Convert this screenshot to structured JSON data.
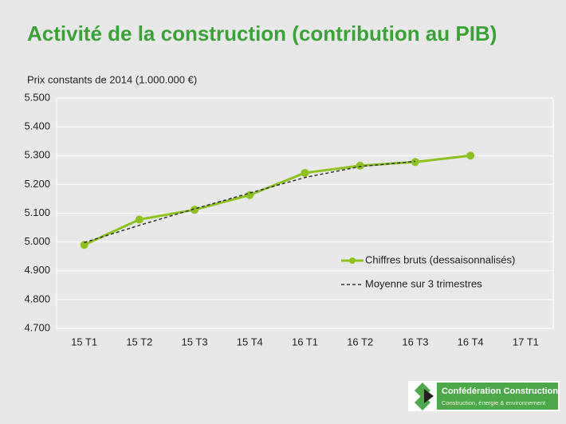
{
  "chart_data": {
    "type": "line",
    "title": "Activité de la construction (contribution au PIB)",
    "y_label": "Prix constants de 2014 (1.000.000 €)",
    "categories": [
      "15 T1",
      "15 T2",
      "15 T3",
      "15 T4",
      "16 T1",
      "16 T2",
      "16 T3",
      "16 T4",
      "17 T1"
    ],
    "series": [
      {
        "name": "Chiffres bruts (dessaisonnalisés)",
        "color": "#8dc21f",
        "style": "solid",
        "markers": true,
        "values": [
          4990,
          5078,
          5112,
          5163,
          5240,
          5265,
          5278,
          5300,
          null
        ]
      },
      {
        "name": "Moyenne sur 3 trimestres",
        "color": "#333333",
        "style": "dashed",
        "markers": false,
        "values": [
          4998,
          5058,
          5115,
          5170,
          5224,
          5262,
          5280,
          null,
          null
        ]
      }
    ],
    "ylim": [
      4700,
      5500
    ],
    "yticks": [
      {
        "value": 4700,
        "label": "4.700"
      },
      {
        "value": 4800,
        "label": "4.800"
      },
      {
        "value": 4900,
        "label": "4.900"
      },
      {
        "value": 5000,
        "label": "5.000"
      },
      {
        "value": 5100,
        "label": "5.100"
      },
      {
        "value": 5200,
        "label": "5.200"
      },
      {
        "value": 5300,
        "label": "5.300"
      },
      {
        "value": 5400,
        "label": "5.400"
      },
      {
        "value": 5500,
        "label": "5.500"
      }
    ],
    "grid": true,
    "legend_position": "lower right"
  },
  "logo": {
    "name": "Confédération Construction",
    "tagline": "Construction, énergie & environnement"
  }
}
